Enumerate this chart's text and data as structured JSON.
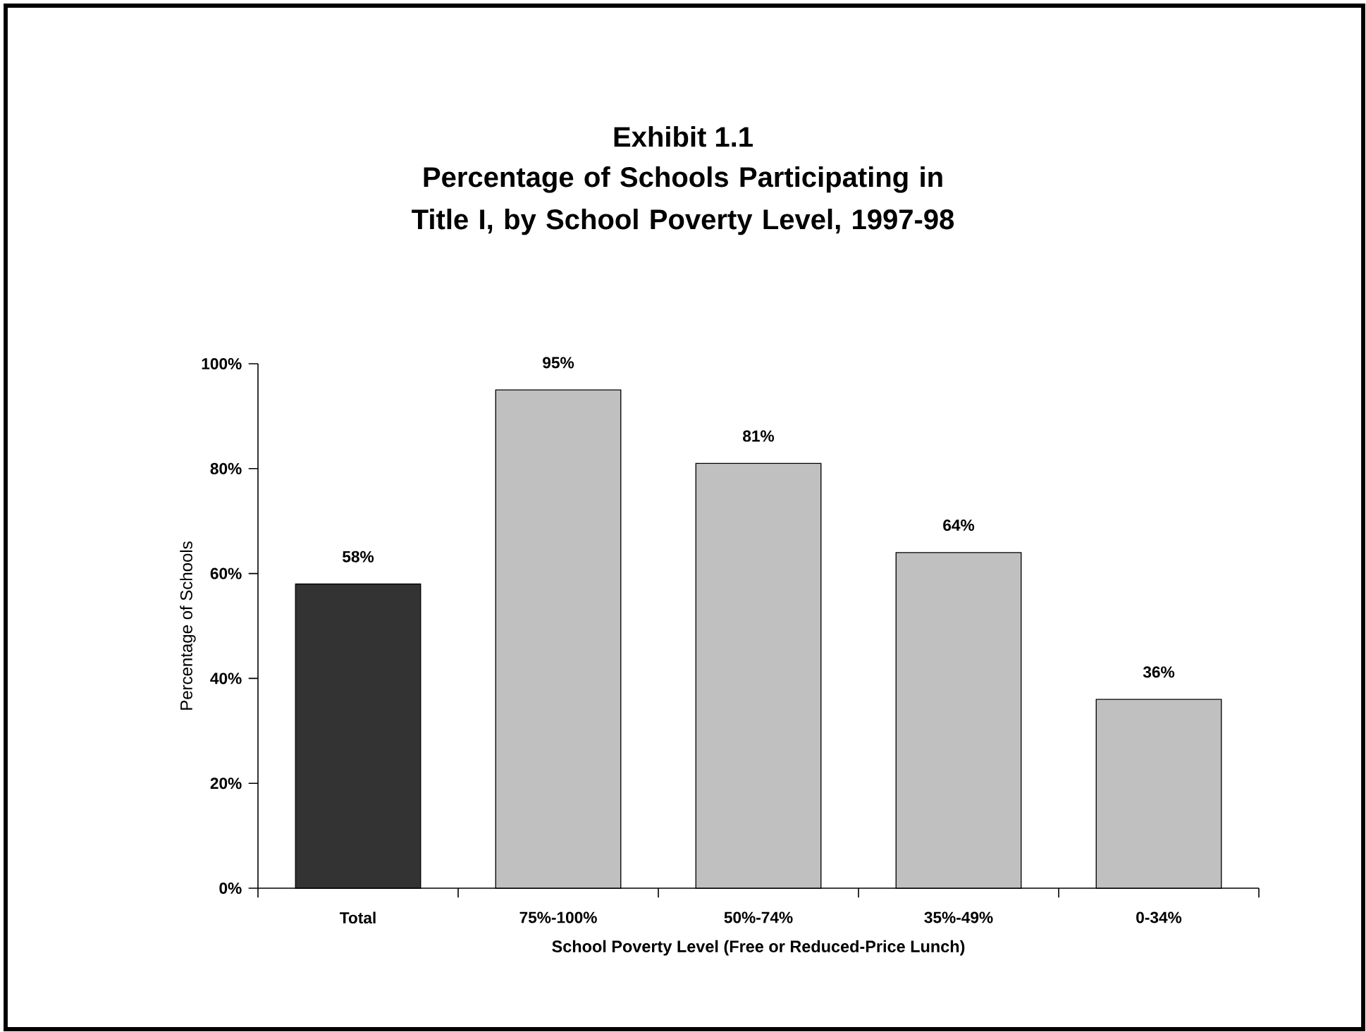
{
  "chart_data": {
    "type": "bar",
    "title": "Exhibit 1.1",
    "subtitle": "Percentage of Schools Participating in Title I, by School Poverty Level, 1997-98",
    "xlabel": "School Poverty Level (Free or Reduced-Price Lunch)",
    "ylabel": "Percentage of Schools",
    "categories": [
      "Total",
      "75%-100%",
      "50%-74%",
      "35%-49%",
      "0-34%"
    ],
    "values": [
      58,
      95,
      81,
      64,
      36
    ],
    "colors": [
      "#333333",
      "#c0c0c0",
      "#c0c0c0",
      "#c0c0c0",
      "#c0c0c0"
    ],
    "value_labels": [
      "58%",
      "95%",
      "81%",
      "64%",
      "36%"
    ],
    "ylim": [
      0,
      100
    ],
    "yticks": [
      {
        "value": 0,
        "label": "0%"
      },
      {
        "value": 20,
        "label": "20%"
      },
      {
        "value": 40,
        "label": "40%"
      },
      {
        "value": 60,
        "label": "60%"
      },
      {
        "value": 80,
        "label": "80%"
      },
      {
        "value": 100,
        "label": "100%"
      }
    ]
  }
}
